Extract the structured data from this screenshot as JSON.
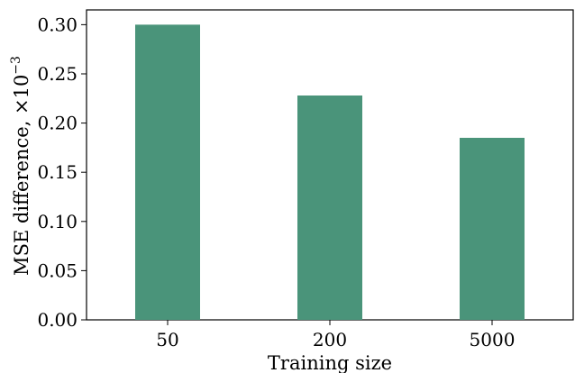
{
  "chart_data": {
    "type": "bar",
    "categories": [
      "50",
      "200",
      "5000"
    ],
    "values": [
      0.3,
      0.228,
      0.185
    ],
    "xlabel": "Training size",
    "ylabel": "MSE difference, ×10",
    "ylabel_exponent": "−3",
    "ylim": [
      0,
      0.315
    ],
    "yticks": [
      0.0,
      0.05,
      0.1,
      0.15,
      0.2,
      0.25,
      0.3
    ],
    "ytick_labels": [
      "0.00",
      "0.05",
      "0.10",
      "0.15",
      "0.20",
      "0.25",
      "0.30"
    ],
    "bar_color": "#4a947a",
    "grid": false
  }
}
